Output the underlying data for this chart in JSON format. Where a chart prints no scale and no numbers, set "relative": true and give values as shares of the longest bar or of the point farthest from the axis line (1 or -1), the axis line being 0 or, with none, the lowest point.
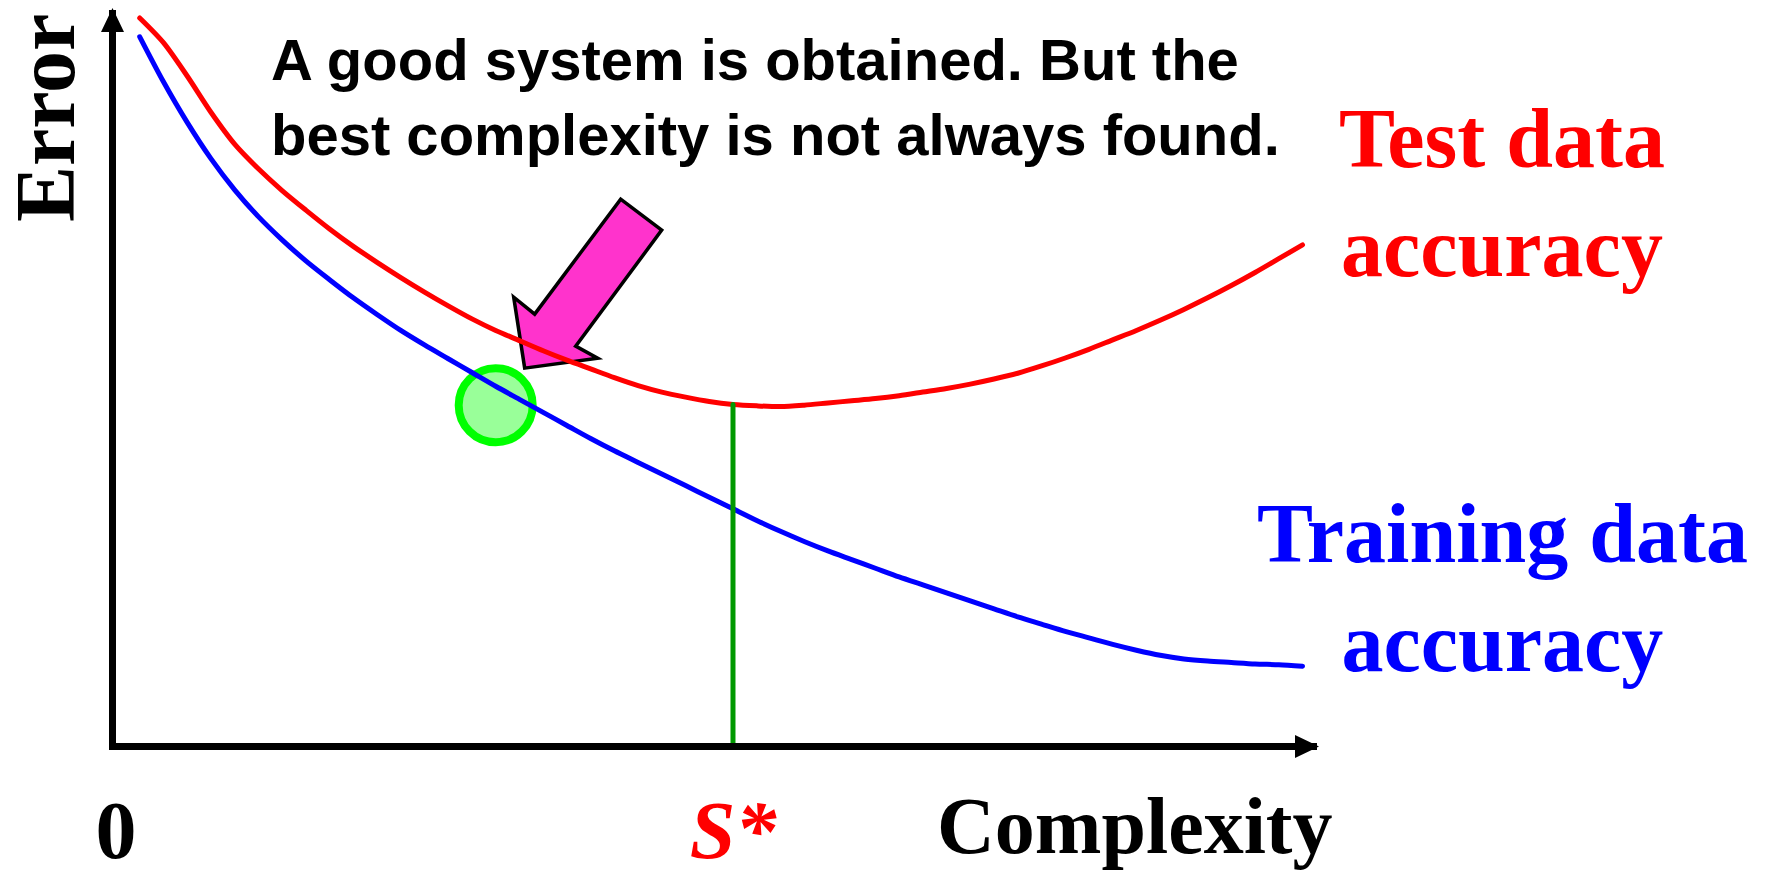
{
  "chart_data": {
    "type": "line",
    "relative": true,
    "xlabel": "Complexity",
    "ylabel": "Error",
    "categories": [
      "0",
      null,
      null,
      null,
      null,
      null,
      null,
      null,
      null,
      null,
      null,
      null,
      null,
      null,
      null,
      null,
      null,
      null,
      null,
      null,
      null,
      null,
      null,
      null,
      null,
      null,
      "S*",
      null,
      null,
      null,
      null,
      null,
      null,
      null,
      null,
      null,
      null,
      null,
      null,
      null,
      null,
      null,
      null,
      null,
      null,
      null,
      null,
      null,
      null,
      null,
      null
    ],
    "series": [
      {
        "name": "Test data accuracy",
        "color": "#ff0000",
        "values": [
          null,
          1.0,
          0.966,
          0.92,
          0.87,
          0.826,
          0.792,
          0.762,
          0.735,
          0.709,
          0.685,
          0.663,
          0.642,
          0.622,
          0.603,
          0.585,
          0.569,
          0.555,
          0.541,
          0.528,
          0.516,
          0.504,
          0.493,
          0.484,
          0.477,
          0.471,
          0.467,
          0.465,
          0.464,
          0.466,
          0.469,
          0.472,
          0.475,
          0.479,
          0.484,
          0.489,
          0.495,
          0.502,
          0.51,
          0.52,
          0.531,
          0.543,
          0.556,
          0.569,
          0.583,
          0.598,
          0.614,
          0.631,
          0.649,
          0.668,
          0.687
        ]
      },
      {
        "name": "Training data accuracy",
        "color": "#0000ff",
        "values": [
          null,
          0.974,
          0.912,
          0.856,
          0.806,
          0.763,
          0.726,
          0.694,
          0.665,
          0.639,
          0.614,
          0.591,
          0.569,
          0.549,
          0.53,
          0.511,
          0.492,
          0.474,
          0.456,
          0.438,
          0.42,
          0.403,
          0.387,
          0.371,
          0.355,
          0.339,
          0.323,
          0.307,
          0.292,
          0.278,
          0.265,
          0.253,
          0.241,
          0.229,
          0.218,
          0.207,
          0.196,
          0.185,
          0.174,
          0.164,
          0.154,
          0.145,
          0.136,
          0.128,
          0.121,
          0.116,
          0.113,
          0.111,
          0.109,
          0.108,
          0.106
        ]
      },
      {
        "type": "line",
        "color": "#009900",
        "x": [
          "S*",
          "S*"
        ],
        "values": [
          0,
          0.467
        ]
      },
      {
        "type": "scatter",
        "color": "#00ff00",
        "marker": "circle",
        "values": [
          null,
          null,
          null,
          null,
          null,
          null,
          null,
          null,
          null,
          null,
          null,
          null,
          null,
          null,
          null,
          null,
          0.466,
          null,
          null,
          null,
          null,
          null,
          null,
          null,
          null,
          null,
          null,
          null,
          null,
          null,
          null,
          null,
          null,
          null,
          null,
          null,
          null,
          null,
          null,
          null,
          null,
          null,
          null,
          null,
          null,
          null,
          null,
          null,
          null,
          null,
          null
        ]
      }
    ],
    "annotations": [
      "A good system is obtained. But the best complexity is not always found."
    ],
    "grid": false,
    "legend": false
  }
}
